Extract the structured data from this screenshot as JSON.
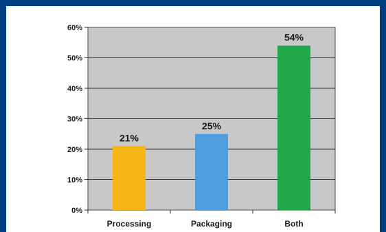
{
  "chart_data": {
    "type": "bar",
    "categories": [
      "Processing",
      "Packaging",
      "Both"
    ],
    "values": [
      21,
      25,
      54
    ],
    "data_labels": [
      "21%",
      "25%",
      "54%"
    ],
    "title": "",
    "xlabel": "",
    "ylabel": "",
    "ylim": [
      0,
      60
    ],
    "yticks": [
      0,
      10,
      20,
      30,
      40,
      50,
      60
    ],
    "ytick_labels": [
      "0%",
      "10%",
      "20%",
      "30%",
      "40%",
      "50%",
      "60%"
    ],
    "grid": true,
    "legend": "none",
    "bar_colors": [
      "#f7b618",
      "#4f9fde",
      "#22a64a"
    ],
    "plot_background": "#c8c8c8",
    "frame_color": "#003f7f"
  }
}
